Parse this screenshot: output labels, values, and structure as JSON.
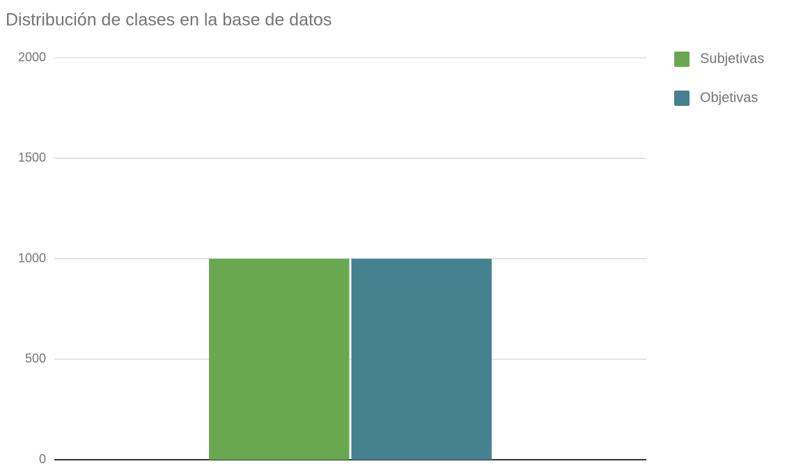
{
  "chart_data": {
    "type": "bar",
    "title": "Distribución de clases en la base de datos",
    "categories": [
      null
    ],
    "series": [
      {
        "name": "Subjetivas",
        "color": "#6aa84f",
        "values": [
          1000
        ]
      },
      {
        "name": "Objetivas",
        "color": "#45818e",
        "values": [
          1000
        ]
      }
    ],
    "ylim": [
      0,
      2000
    ],
    "yticks": [
      0,
      500,
      1000,
      1500,
      2000
    ],
    "grid": true,
    "legend": "right"
  }
}
